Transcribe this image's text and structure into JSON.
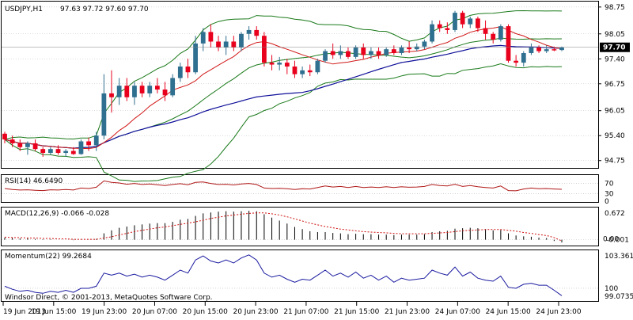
{
  "header": {
    "symbol": "USDJPY,H1",
    "ohlc": "97.63 97.72 97.60 97.70",
    "copyright": "Windsor Direct, © 2001-2013, MetaQuotes Software Corp."
  },
  "colors": {
    "bull": "#2f6f8f",
    "bear": "#e8001c",
    "ma_fast": "#d11a1a",
    "ma_slow": "#10109a",
    "bands": "#1a7a1a",
    "rsi": "#b01818",
    "macd_hist": "#000000",
    "macd_signal": "#d01010",
    "momentum": "#1a1aa0",
    "grid": "#b8b8b8",
    "price_tag_bg": "#000000"
  },
  "chart_data": [
    {
      "type": "candlestick",
      "panel": "price",
      "ylim": [
        94.6,
        98.85
      ],
      "y_ticks": [
        "98.75",
        "98.05",
        "97.40",
        "96.75",
        "96.05",
        "95.40",
        "94.75"
      ],
      "x_ticks": [
        "19 Jun 2013",
        "19 Jun 15:00",
        "19 Jun 23:00",
        "20 Jun 07:00",
        "20 Jun 15:00",
        "20 Jun 23:00",
        "21 Jun 07:00",
        "21 Jun 15:00",
        "21 Jun 23:00",
        "24 Jun 07:00",
        "24 Jun 15:00",
        "24 Jun 23:00"
      ],
      "current_price": "97.70",
      "candles": [
        [
          95.45,
          95.5,
          95.2,
          95.3
        ],
        [
          95.3,
          95.4,
          95.1,
          95.2
        ],
        [
          95.2,
          95.3,
          95.0,
          95.1
        ],
        [
          95.1,
          95.25,
          94.9,
          95.2
        ],
        [
          95.2,
          95.3,
          95.0,
          95.05
        ],
        [
          95.05,
          95.1,
          94.85,
          94.95
        ],
        [
          94.95,
          95.1,
          94.9,
          95.05
        ],
        [
          95.05,
          95.15,
          94.9,
          94.95
        ],
        [
          94.95,
          95.05,
          94.85,
          95.0
        ],
        [
          95.0,
          95.1,
          94.9,
          94.92
        ],
        [
          94.92,
          95.3,
          94.9,
          95.25
        ],
        [
          95.25,
          95.35,
          95.0,
          95.15
        ],
        [
          95.15,
          95.5,
          95.0,
          95.4
        ],
        [
          95.4,
          97.0,
          95.3,
          96.5
        ],
        [
          96.5,
          97.1,
          96.0,
          96.4
        ],
        [
          96.4,
          96.9,
          96.2,
          96.7
        ],
        [
          96.7,
          96.9,
          96.3,
          96.4
        ],
        [
          96.4,
          96.8,
          96.2,
          96.7
        ],
        [
          96.7,
          96.8,
          96.4,
          96.5
        ],
        [
          96.5,
          96.8,
          96.4,
          96.7
        ],
        [
          96.7,
          96.9,
          96.5,
          96.6
        ],
        [
          96.6,
          96.8,
          96.3,
          96.45
        ],
        [
          96.45,
          97.0,
          96.4,
          96.9
        ],
        [
          96.9,
          97.3,
          96.8,
          97.2
        ],
        [
          97.2,
          97.4,
          96.9,
          97.05
        ],
        [
          97.05,
          98.0,
          97.0,
          97.8
        ],
        [
          97.8,
          98.2,
          97.6,
          98.1
        ],
        [
          98.1,
          98.3,
          97.7,
          97.85
        ],
        [
          97.85,
          98.0,
          97.6,
          97.7
        ],
        [
          97.7,
          98.0,
          97.5,
          97.85
        ],
        [
          97.85,
          98.0,
          97.6,
          97.7
        ],
        [
          97.7,
          98.1,
          97.6,
          98.05
        ],
        [
          98.05,
          98.25,
          97.9,
          98.15
        ],
        [
          98.15,
          98.25,
          97.9,
          98.0
        ],
        [
          98.0,
          98.1,
          97.2,
          97.3
        ],
        [
          97.3,
          97.5,
          97.1,
          97.25
        ],
        [
          97.25,
          97.45,
          97.1,
          97.3
        ],
        [
          97.3,
          97.4,
          97.0,
          97.2
        ],
        [
          97.2,
          97.35,
          96.9,
          97.0
        ],
        [
          97.0,
          97.2,
          96.9,
          97.1
        ],
        [
          97.1,
          97.25,
          96.95,
          97.05
        ],
        [
          97.05,
          97.4,
          97.0,
          97.35
        ],
        [
          97.35,
          97.65,
          97.3,
          97.6
        ],
        [
          97.6,
          97.8,
          97.4,
          97.5
        ],
        [
          97.5,
          97.75,
          97.4,
          97.6
        ],
        [
          97.6,
          97.7,
          97.4,
          97.45
        ],
        [
          97.45,
          97.75,
          97.4,
          97.7
        ],
        [
          97.7,
          97.8,
          97.4,
          97.5
        ],
        [
          97.5,
          97.7,
          97.4,
          97.6
        ],
        [
          97.6,
          97.7,
          97.4,
          97.5
        ],
        [
          97.5,
          97.7,
          97.45,
          97.65
        ],
        [
          97.65,
          97.75,
          97.5,
          97.55
        ],
        [
          97.55,
          97.75,
          97.5,
          97.7
        ],
        [
          97.7,
          97.85,
          97.55,
          97.65
        ],
        [
          97.65,
          97.8,
          97.6,
          97.72
        ],
        [
          97.72,
          97.9,
          97.65,
          97.85
        ],
        [
          97.85,
          98.4,
          97.8,
          98.3
        ],
        [
          98.3,
          98.4,
          98.1,
          98.2
        ],
        [
          98.2,
          98.35,
          98.05,
          98.15
        ],
        [
          98.15,
          98.65,
          98.1,
          98.6
        ],
        [
          98.6,
          98.65,
          98.2,
          98.3
        ],
        [
          98.3,
          98.5,
          98.2,
          98.45
        ],
        [
          98.45,
          98.5,
          98.1,
          98.2
        ],
        [
          98.2,
          98.4,
          97.9,
          98.05
        ],
        [
          98.05,
          98.1,
          97.8,
          97.9
        ],
        [
          97.9,
          98.3,
          97.85,
          98.25
        ],
        [
          98.25,
          98.3,
          97.3,
          97.35
        ],
        [
          97.35,
          97.5,
          97.2,
          97.3
        ],
        [
          97.3,
          97.6,
          97.2,
          97.55
        ],
        [
          97.55,
          97.8,
          97.5,
          97.7
        ],
        [
          97.7,
          97.75,
          97.55,
          97.6
        ],
        [
          97.6,
          97.75,
          97.55,
          97.65
        ],
        [
          97.65,
          97.72,
          97.6,
          97.62
        ],
        [
          97.63,
          97.72,
          97.6,
          97.7
        ]
      ]
    },
    {
      "type": "line",
      "panel": "rsi",
      "label": "RSI(14) 46.6490",
      "ylim": [
        0,
        100
      ],
      "y_ticks": [
        "70",
        "30",
        "0"
      ],
      "levels": [
        70,
        30
      ],
      "values": [
        50,
        46,
        44,
        45,
        43,
        42,
        45,
        44,
        46,
        44,
        52,
        50,
        55,
        80,
        74,
        72,
        67,
        70,
        66,
        68,
        65,
        62,
        66,
        69,
        65,
        74,
        76,
        70,
        66,
        67,
        64,
        68,
        70,
        66,
        52,
        50,
        51,
        49,
        46,
        49,
        48,
        54,
        60,
        56,
        58,
        54,
        58,
        54,
        56,
        54,
        57,
        54,
        57,
        55,
        56,
        58,
        66,
        62,
        60,
        67,
        58,
        62,
        57,
        54,
        52,
        60,
        42,
        41,
        48,
        52,
        49,
        50,
        48,
        47
      ]
    },
    {
      "type": "bar",
      "panel": "macd",
      "label": "MACD(12,26,9) -0.066 -0.028",
      "y_ticks": [
        "0.672",
        "0.00",
        "-0.001"
      ],
      "ylim": [
        -0.1,
        0.72
      ],
      "histogram": [
        0.05,
        0.04,
        0.03,
        0.03,
        0.02,
        0.01,
        0.01,
        0.0,
        0.0,
        -0.01,
        0.0,
        0.0,
        0.02,
        0.15,
        0.22,
        0.28,
        0.31,
        0.34,
        0.36,
        0.38,
        0.39,
        0.39,
        0.42,
        0.47,
        0.49,
        0.56,
        0.62,
        0.64,
        0.66,
        0.67,
        0.66,
        0.67,
        0.68,
        0.67,
        0.6,
        0.52,
        0.45,
        0.38,
        0.3,
        0.25,
        0.2,
        0.18,
        0.18,
        0.16,
        0.15,
        0.13,
        0.14,
        0.13,
        0.13,
        0.12,
        0.12,
        0.11,
        0.12,
        0.12,
        0.12,
        0.13,
        0.18,
        0.2,
        0.21,
        0.26,
        0.27,
        0.28,
        0.27,
        0.25,
        0.22,
        0.23,
        0.15,
        0.1,
        0.08,
        0.07,
        0.05,
        0.04,
        -0.03,
        -0.066
      ],
      "signal": [
        0.06,
        0.05,
        0.05,
        0.04,
        0.04,
        0.03,
        0.03,
        0.02,
        0.02,
        0.01,
        0.01,
        0.01,
        0.01,
        0.04,
        0.07,
        0.11,
        0.15,
        0.19,
        0.22,
        0.25,
        0.28,
        0.3,
        0.33,
        0.36,
        0.39,
        0.42,
        0.46,
        0.5,
        0.53,
        0.56,
        0.58,
        0.6,
        0.62,
        0.63,
        0.63,
        0.61,
        0.58,
        0.54,
        0.49,
        0.44,
        0.39,
        0.35,
        0.31,
        0.28,
        0.25,
        0.23,
        0.21,
        0.19,
        0.18,
        0.17,
        0.16,
        0.15,
        0.14,
        0.14,
        0.14,
        0.14,
        0.15,
        0.16,
        0.17,
        0.19,
        0.21,
        0.22,
        0.23,
        0.24,
        0.24,
        0.24,
        0.22,
        0.2,
        0.17,
        0.15,
        0.12,
        0.1,
        0.05,
        -0.028
      ]
    },
    {
      "type": "line",
      "panel": "momentum",
      "label": "Momentum(22) 99.2684",
      "y_ticks": [
        "103.3613",
        "100",
        "99.0735"
      ],
      "ylim": [
        98.9,
        103.6
      ],
      "level": 100,
      "values": [
        100.2,
        99.9,
        99.7,
        99.8,
        99.6,
        99.5,
        99.7,
        99.6,
        99.8,
        99.6,
        100.0,
        100.0,
        100.2,
        101.5,
        101.3,
        101.5,
        101.2,
        101.4,
        101.1,
        101.3,
        101.1,
        100.8,
        101.3,
        101.8,
        101.5,
        102.8,
        103.2,
        102.7,
        102.5,
        102.8,
        102.5,
        103.0,
        103.3,
        102.8,
        101.5,
        101.1,
        101.3,
        100.9,
        100.6,
        100.9,
        100.8,
        101.3,
        101.8,
        101.2,
        101.5,
        101.1,
        101.6,
        101.0,
        101.3,
        100.8,
        101.2,
        100.6,
        101.0,
        100.8,
        100.9,
        101.0,
        101.8,
        101.5,
        101.3,
        102.1,
        101.2,
        101.6,
        101.0,
        100.8,
        100.7,
        101.2,
        100.1,
        100.0,
        100.4,
        100.5,
        100.3,
        100.3,
        99.8,
        99.27
      ]
    }
  ]
}
